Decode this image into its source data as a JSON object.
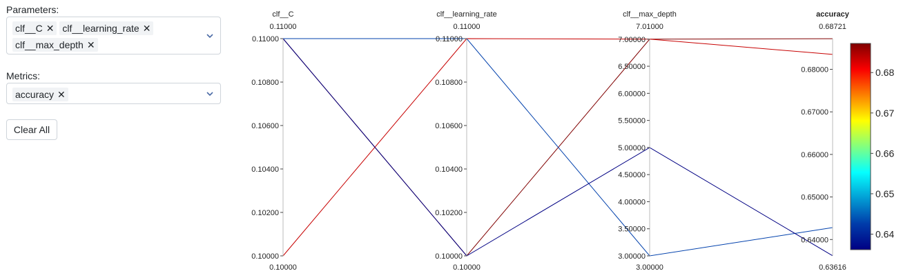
{
  "sidebar": {
    "parameters_label": "Parameters:",
    "parameters": [
      "clf__C",
      "clf__learning_rate",
      "clf__max_depth"
    ],
    "metrics_label": "Metrics:",
    "metrics": [
      "accuracy"
    ],
    "remove_glyph": "✕",
    "clear_all_label": "Clear All",
    "icons": {
      "dropdown": "chevron-down-icon",
      "remove": "close-icon"
    }
  },
  "chart_data": {
    "type": "parallel_coordinates",
    "axes": [
      {
        "name": "clf__C",
        "range": [
          0.1,
          0.11
        ],
        "min_label": "0.10000",
        "max_label": "0.11000",
        "ticks": [
          "0.10000",
          "0.10200",
          "0.10400",
          "0.10600",
          "0.10800",
          "0.11000"
        ],
        "tick_values": [
          0.1,
          0.102,
          0.104,
          0.106,
          0.108,
          0.11
        ]
      },
      {
        "name": "clf__learning_rate",
        "range": [
          0.1,
          0.11
        ],
        "min_label": "0.10000",
        "max_label": "0.11000",
        "ticks": [
          "0.10000",
          "0.10200",
          "0.10400",
          "0.10600",
          "0.10800",
          "0.11000"
        ],
        "tick_values": [
          0.1,
          0.102,
          0.104,
          0.106,
          0.108,
          0.11
        ]
      },
      {
        "name": "clf__max_depth",
        "range": [
          3.0,
          7.01
        ],
        "min_label": "3.00000",
        "max_label": "7.01000",
        "ticks": [
          "3.00000",
          "3.50000",
          "4.00000",
          "4.50000",
          "5.00000",
          "5.50000",
          "6.00000",
          "6.50000",
          "7.00000"
        ],
        "tick_values": [
          3,
          3.5,
          4,
          4.5,
          5,
          5.5,
          6,
          6.5,
          7
        ]
      },
      {
        "name": "accuracy",
        "range": [
          0.63616,
          0.68721
        ],
        "min_label": "0.63616",
        "max_label": "0.68721",
        "ticks": [
          "0.64000",
          "0.65000",
          "0.66000",
          "0.67000",
          "0.68000"
        ],
        "tick_values": [
          0.64,
          0.65,
          0.66,
          0.67,
          0.68
        ],
        "highlight": true
      }
    ],
    "lines": [
      {
        "values": [
          0.11,
          0.1,
          7.0,
          0.6872
        ]
      },
      {
        "values": [
          0.1,
          0.11,
          7.0,
          0.6835
        ]
      },
      {
        "values": [
          0.11,
          0.11,
          3.0,
          0.6428
        ]
      },
      {
        "values": [
          0.11,
          0.1,
          5.0,
          0.6362
        ]
      }
    ],
    "colorscale": {
      "name": "Jet",
      "range": [
        0.63616,
        0.68721
      ],
      "tick_labels": [
        "0.64",
        "0.65",
        "0.66",
        "0.67",
        "0.68"
      ],
      "tick_values": [
        0.64,
        0.65,
        0.66,
        0.67,
        0.68
      ]
    },
    "colors": {
      "axis_title": "#222222",
      "highlight_title": "#007700",
      "axis_line": "#bbbbbb"
    }
  }
}
